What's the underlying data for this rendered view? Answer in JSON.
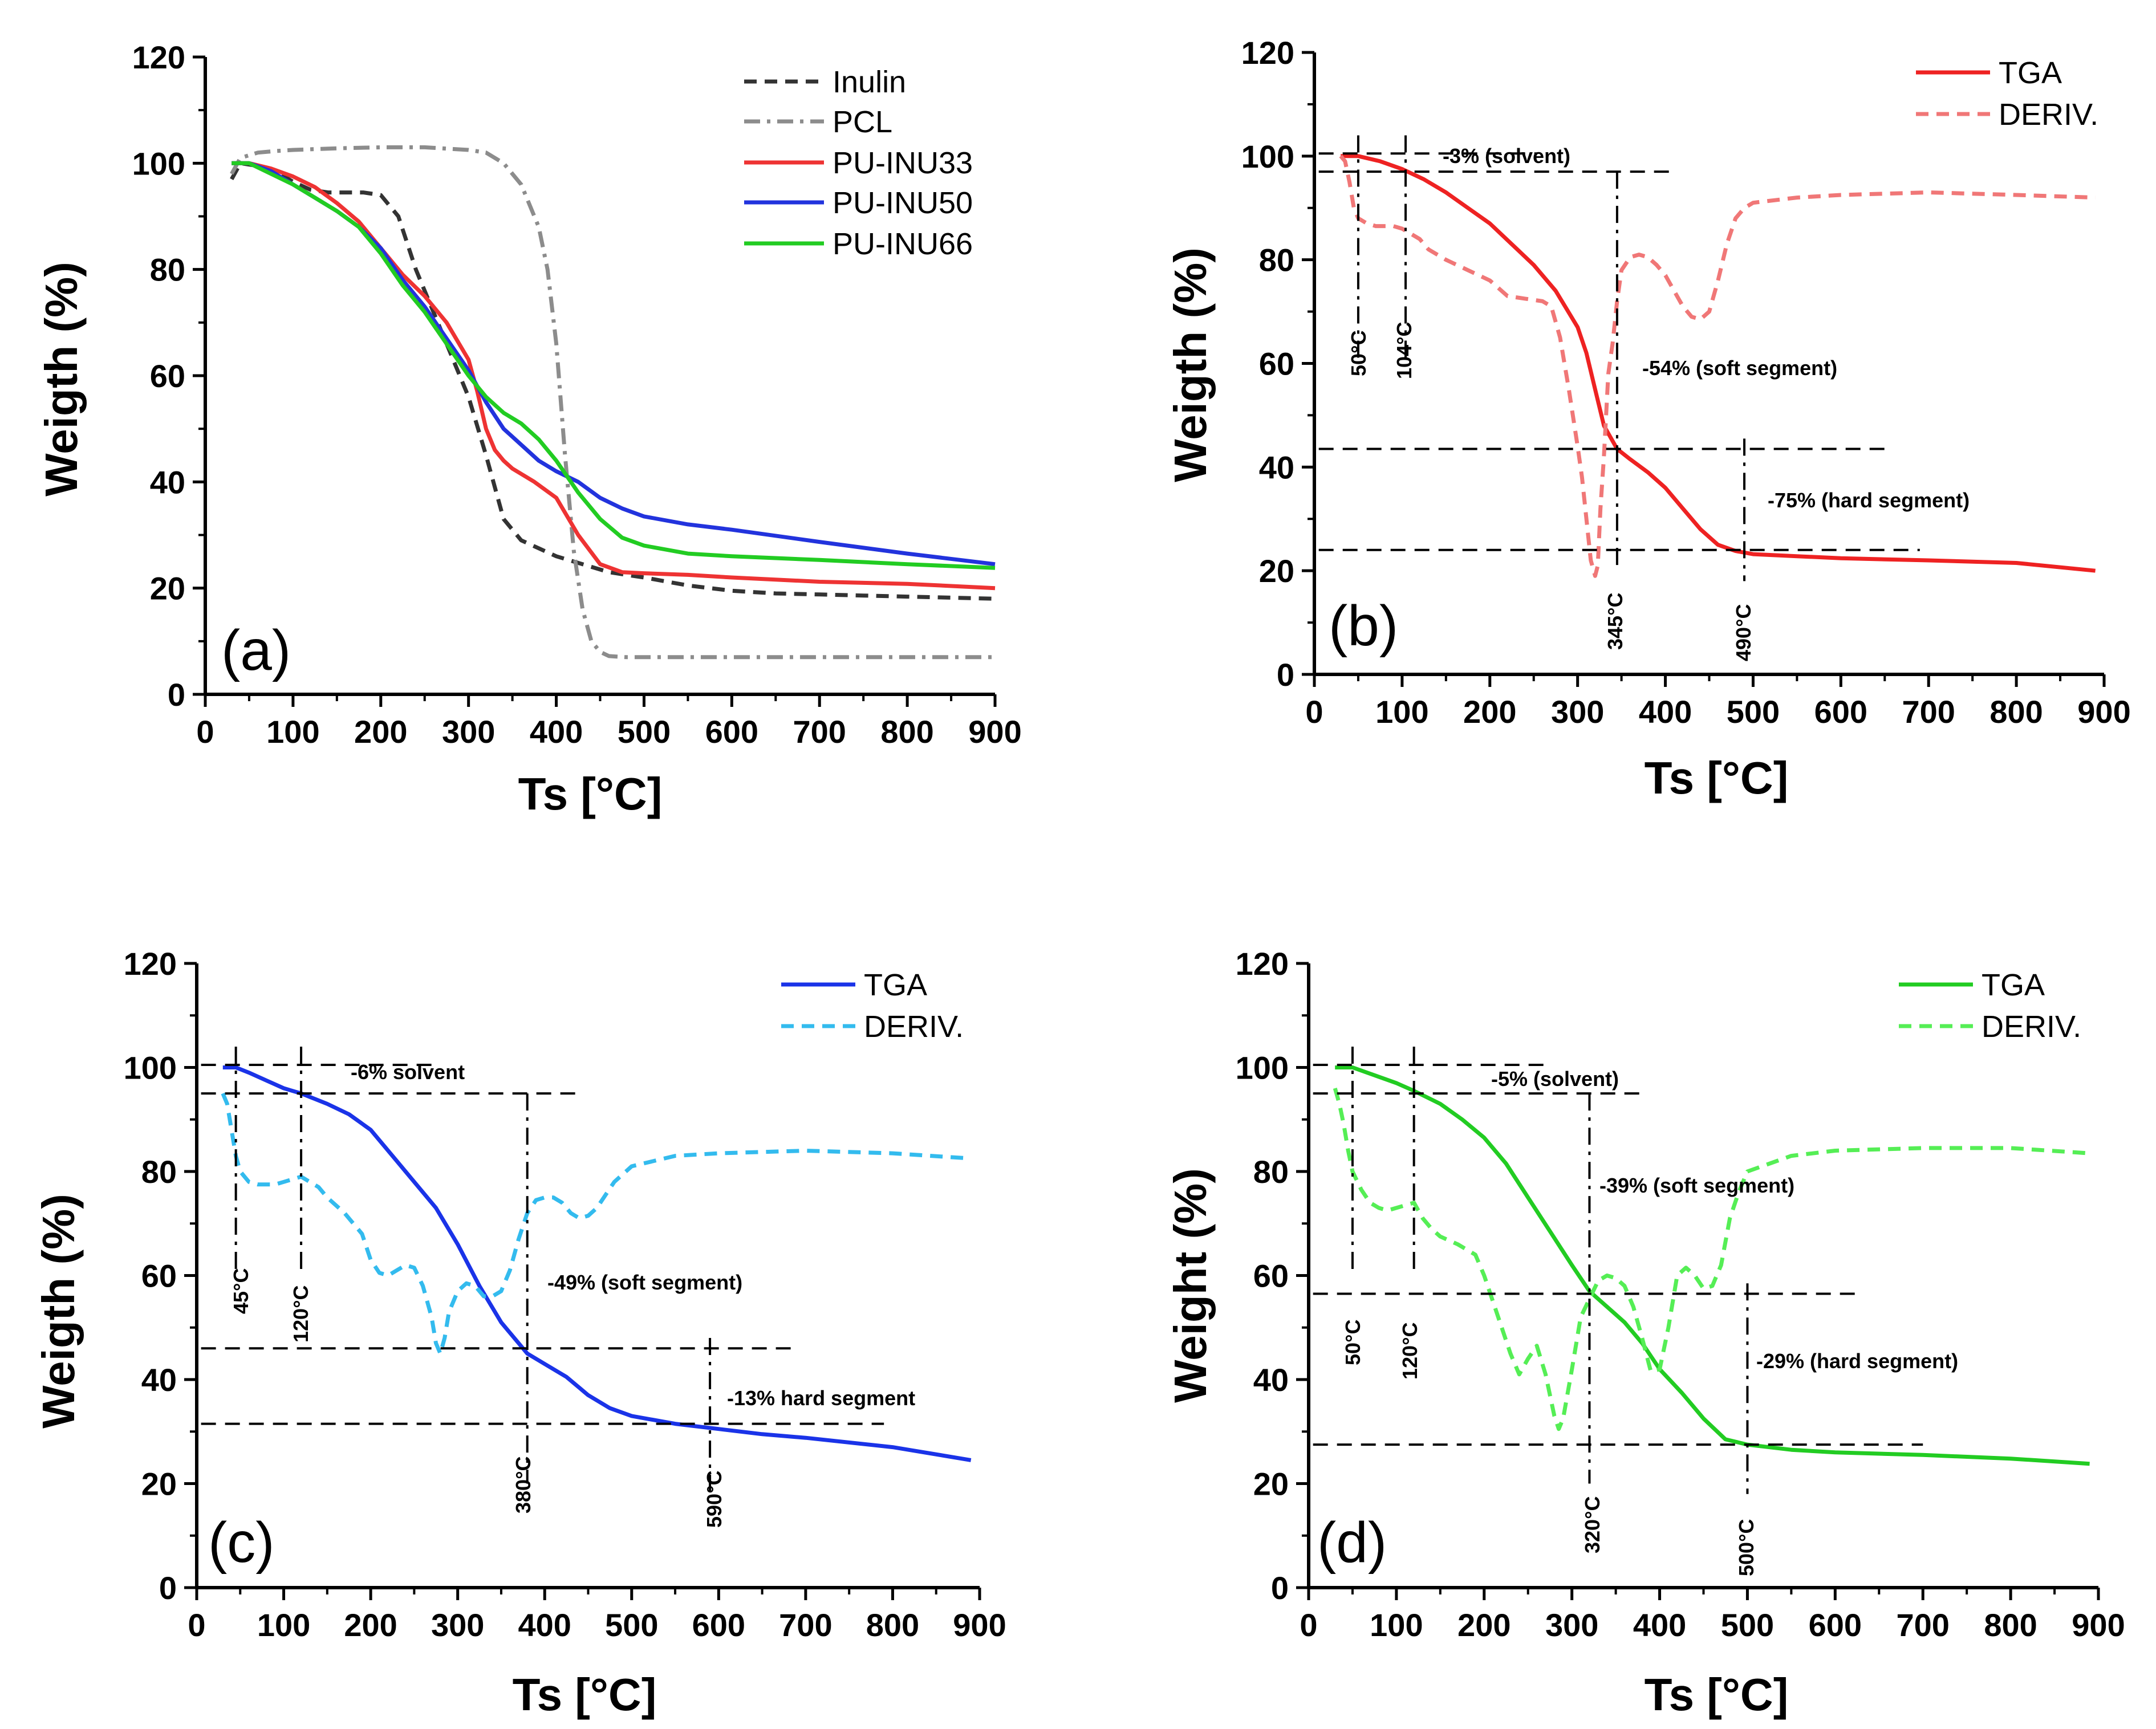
{
  "chart_data": [
    {
      "id": "a",
      "type": "line",
      "panel_label": "(a)",
      "xlabel": "Ts [°C]",
      "ylabel": "Weigth (%)",
      "xlim": [
        0,
        900
      ],
      "ylim": [
        0,
        120
      ],
      "xticks": [
        "0",
        "100",
        "200",
        "300",
        "400",
        "500",
        "600",
        "700",
        "800",
        "900"
      ],
      "yticks": [
        "0",
        "20",
        "40",
        "60",
        "80",
        "100",
        "120"
      ],
      "legend_position": "top-right",
      "series": [
        {
          "name": "Inulin",
          "color": "#333333",
          "style": "dash",
          "x": [
            30,
            40,
            60,
            80,
            100,
            120,
            140,
            160,
            180,
            200,
            220,
            240,
            260,
            280,
            300,
            320,
            340,
            360,
            380,
            400,
            420,
            440,
            460,
            480,
            500,
            550,
            600,
            650,
            700,
            750,
            800,
            850,
            900
          ],
          "y": [
            97,
            100,
            99.5,
            98.5,
            96.5,
            95,
            94.5,
            94.5,
            94.5,
            94,
            90,
            80,
            72,
            64,
            56,
            45,
            33,
            29,
            27.5,
            26,
            25,
            24,
            23,
            22.5,
            22,
            20.5,
            19.5,
            19,
            18.8,
            18.6,
            18.4,
            18.2,
            18
          ]
        },
        {
          "name": "PCL",
          "color": "#8c8c8c",
          "style": "dashdot",
          "x": [
            30,
            40,
            60,
            80,
            100,
            150,
            200,
            250,
            300,
            320,
            340,
            360,
            380,
            390,
            400,
            410,
            420,
            430,
            440,
            450,
            460,
            480,
            500,
            600,
            700,
            800,
            900
          ],
          "y": [
            98,
            101,
            102,
            102.3,
            102.5,
            102.8,
            103,
            103,
            102.5,
            102,
            100,
            96,
            88,
            80,
            66,
            45,
            27,
            16,
            10,
            8,
            7.2,
            7,
            7,
            7,
            7,
            7,
            7
          ]
        },
        {
          "name": "PU-INU33",
          "color": "#ee3333",
          "style": "solid",
          "x": [
            30,
            50,
            75,
            100,
            125,
            150,
            175,
            200,
            225,
            250,
            275,
            300,
            310,
            320,
            330,
            340,
            350,
            375,
            400,
            425,
            450,
            475,
            500,
            550,
            600,
            700,
            800,
            900
          ],
          "y": [
            100,
            100,
            99,
            97.5,
            95.5,
            92.5,
            89,
            84,
            79,
            75,
            70,
            63,
            57,
            50,
            46,
            44,
            42.5,
            40,
            37,
            30,
            24.5,
            23,
            22.8,
            22.5,
            22,
            21.2,
            20.8,
            20
          ]
        },
        {
          "name": "PU-INU50",
          "color": "#2233dd",
          "style": "solid",
          "x": [
            30,
            50,
            75,
            100,
            125,
            150,
            175,
            200,
            225,
            250,
            275,
            300,
            320,
            340,
            360,
            380,
            400,
            425,
            450,
            475,
            500,
            550,
            600,
            700,
            800,
            900
          ],
          "y": [
            100,
            100,
            98.5,
            96,
            93.5,
            91,
            88,
            84,
            78,
            73,
            67,
            61,
            55,
            50,
            47,
            44,
            42,
            40,
            37,
            35,
            33.5,
            32,
            31,
            28.7,
            26.5,
            24.5
          ]
        },
        {
          "name": "PU-INU66",
          "color": "#22cc22",
          "style": "solid",
          "x": [
            30,
            50,
            75,
            100,
            125,
            150,
            175,
            200,
            225,
            250,
            275,
            300,
            320,
            340,
            360,
            380,
            400,
            425,
            450,
            475,
            500,
            550,
            600,
            700,
            800,
            900
          ],
          "y": [
            100,
            100,
            98,
            96,
            93.5,
            91,
            88,
            83,
            77,
            72,
            66,
            60,
            56,
            53,
            51,
            48,
            44,
            38,
            33,
            29.5,
            28,
            26.5,
            26,
            25.3,
            24.5,
            23.8
          ]
        }
      ]
    },
    {
      "id": "b",
      "type": "line",
      "panel_label": "(b)",
      "xlabel": "Ts [°C]",
      "ylabel": "Weigth (%)",
      "xlim": [
        0,
        900
      ],
      "ylim": [
        0,
        120
      ],
      "xticks": [
        "0",
        "100",
        "200",
        "300",
        "400",
        "500",
        "600",
        "700",
        "800",
        "900"
      ],
      "yticks": [
        "0",
        "20",
        "40",
        "60",
        "80",
        "100",
        "120"
      ],
      "legend_position": "top-right",
      "series": [
        {
          "name": "TGA",
          "color": "#ee2222",
          "style": "solid",
          "x": [
            30,
            50,
            75,
            100,
            125,
            150,
            175,
            200,
            225,
            250,
            275,
            300,
            310,
            320,
            330,
            340,
            345,
            360,
            380,
            400,
            420,
            440,
            460,
            480,
            490,
            500,
            550,
            600,
            700,
            800,
            890
          ],
          "y": [
            100,
            100,
            99,
            97.5,
            95.5,
            93,
            90,
            87,
            83,
            79,
            74,
            67,
            62,
            55,
            48,
            45,
            43.5,
            41.5,
            39,
            36,
            32,
            28,
            25,
            23.8,
            23.5,
            23.2,
            22.8,
            22.4,
            22,
            21.5,
            20
          ]
        },
        {
          "name": "DERIV.",
          "color": "#f07777",
          "style": "dash",
          "x": [
            30,
            35,
            40,
            45,
            50,
            60,
            70,
            80,
            90,
            100,
            110,
            120,
            130,
            150,
            175,
            200,
            220,
            240,
            260,
            270,
            280,
            290,
            300,
            305,
            310,
            315,
            320,
            323,
            326,
            330,
            335,
            340,
            345,
            350,
            360,
            370,
            380,
            390,
            400,
            410,
            420,
            430,
            440,
            450,
            460,
            470,
            480,
            490,
            500,
            550,
            600,
            700,
            800,
            890
          ],
          "y": [
            100,
            99,
            95,
            90,
            88,
            87,
            86.5,
            86.5,
            86.5,
            86,
            85,
            84,
            82,
            80,
            78,
            76,
            73,
            72.5,
            72,
            71,
            65,
            55,
            44,
            38,
            30,
            22,
            19,
            21,
            32,
            42,
            58,
            64,
            72,
            78,
            80.5,
            81,
            80.5,
            79,
            77,
            74,
            71,
            69,
            68.5,
            70,
            76,
            83,
            88,
            90,
            91,
            92,
            92.5,
            93,
            92.5,
            92
          ]
        }
      ]
    },
    {
      "id": "c",
      "type": "line",
      "panel_label": "(c)",
      "xlabel": "Ts [°C]",
      "ylabel": "Weigth (%)",
      "xlim": [
        0,
        900
      ],
      "ylim": [
        0,
        120
      ],
      "xticks": [
        "0",
        "100",
        "200",
        "300",
        "400",
        "500",
        "600",
        "700",
        "800",
        "900"
      ],
      "yticks": [
        "0",
        "20",
        "40",
        "60",
        "80",
        "100",
        "120"
      ],
      "legend_position": "top-right",
      "series": [
        {
          "name": "TGA",
          "color": "#1a33e8",
          "style": "solid",
          "x": [
            30,
            45,
            60,
            80,
            100,
            120,
            150,
            175,
            200,
            225,
            250,
            275,
            300,
            325,
            350,
            375,
            380,
            400,
            425,
            450,
            475,
            500,
            550,
            600,
            650,
            700,
            800,
            890
          ],
          "y": [
            100,
            100,
            99,
            97.5,
            96,
            95,
            93,
            91,
            88,
            83,
            78,
            73,
            66,
            58,
            51,
            46,
            45,
            43,
            40.5,
            37,
            34.5,
            33,
            31.5,
            30.5,
            29.5,
            28.8,
            27,
            24.5
          ]
        },
        {
          "name": "DERIV.",
          "color": "#33bbee",
          "style": "dash",
          "x": [
            30,
            35,
            40,
            45,
            50,
            60,
            70,
            80,
            90,
            100,
            110,
            120,
            130,
            140,
            150,
            170,
            190,
            200,
            210,
            220,
            230,
            240,
            250,
            260,
            270,
            275,
            280,
            285,
            290,
            300,
            310,
            320,
            330,
            340,
            350,
            360,
            370,
            380,
            390,
            400,
            410,
            420,
            430,
            440,
            450,
            460,
            470,
            480,
            500,
            550,
            600,
            700,
            800,
            890
          ],
          "y": [
            95,
            93,
            88,
            83,
            80,
            78,
            77.5,
            77.5,
            77.5,
            78,
            78.5,
            79,
            78,
            77,
            75,
            72,
            68,
            63,
            60.5,
            60,
            61,
            62,
            61.5,
            58,
            52,
            47,
            45,
            48,
            53,
            57,
            58.5,
            58,
            56,
            56,
            57,
            61,
            67,
            72,
            74.5,
            75,
            75,
            74,
            72,
            71,
            71.5,
            73,
            75.5,
            78,
            81,
            83,
            83.5,
            84,
            83.5,
            82.5
          ]
        }
      ]
    },
    {
      "id": "d",
      "type": "line",
      "panel_label": "(d)",
      "xlabel": "Ts [°C]",
      "ylabel": "Weight (%)",
      "xlim": [
        0,
        900
      ],
      "ylim": [
        0,
        120
      ],
      "xticks": [
        "0",
        "100",
        "200",
        "300",
        "400",
        "500",
        "600",
        "700",
        "800",
        "900"
      ],
      "yticks": [
        "0",
        "20",
        "40",
        "60",
        "80",
        "100",
        "120"
      ],
      "legend_position": "top-right",
      "series": [
        {
          "name": "TGA",
          "color": "#22cc22",
          "style": "solid",
          "x": [
            30,
            50,
            75,
            100,
            120,
            150,
            175,
            200,
            225,
            250,
            275,
            300,
            320,
            340,
            360,
            380,
            400,
            425,
            450,
            475,
            500,
            550,
            600,
            700,
            800,
            890
          ],
          "y": [
            100,
            100,
            98.5,
            97,
            95.5,
            93,
            90,
            86.5,
            81.5,
            75,
            68.5,
            62,
            57,
            54,
            51,
            47,
            42,
            37.5,
            32.5,
            28.5,
            27.5,
            26.5,
            26,
            25.5,
            24.8,
            23.8
          ]
        },
        {
          "name": "DERIV.",
          "color": "#55ee55",
          "style": "dash",
          "x": [
            30,
            35,
            40,
            45,
            50,
            60,
            70,
            80,
            90,
            100,
            110,
            120,
            130,
            140,
            150,
            170,
            190,
            200,
            210,
            220,
            230,
            240,
            250,
            260,
            270,
            280,
            285,
            290,
            300,
            310,
            320,
            330,
            340,
            350,
            360,
            370,
            380,
            390,
            400,
            410,
            420,
            430,
            440,
            450,
            460,
            470,
            480,
            490,
            500,
            550,
            600,
            700,
            800,
            890
          ],
          "y": [
            96,
            93,
            89,
            84,
            80,
            76.5,
            74,
            73,
            72.5,
            73,
            73.5,
            74,
            71,
            69,
            67.5,
            66,
            64,
            60,
            55,
            50,
            45,
            41,
            44,
            46.5,
            41,
            33,
            30.5,
            32.5,
            42,
            52,
            55.5,
            59,
            60,
            59.5,
            58,
            54,
            48,
            41.5,
            42,
            50,
            60,
            61.5,
            60,
            57.5,
            58,
            62,
            71,
            76,
            80,
            83,
            84,
            84.5,
            84.5,
            83.5
          ]
        }
      ]
    }
  ],
  "legends": {
    "a": [
      "Inulin",
      "PCL",
      "PU-INU33",
      "PU-INU50",
      "PU-INU66"
    ],
    "b": [
      "TGA",
      "DERIV."
    ],
    "c": [
      "TGA",
      "DERIV."
    ],
    "d": [
      "TGA",
      "DERIV."
    ]
  },
  "annotations": {
    "b": {
      "solvent": "-3% (solvent)",
      "soft": "-54% (soft segment)",
      "hard": "-75% (hard segment)",
      "t1": "50°C",
      "t2": "104°C",
      "t3": "345°C",
      "t4": "490°C"
    },
    "c": {
      "solvent": "-6% solvent",
      "soft": "-49% (soft segment)",
      "hard": "-13% hard segment",
      "t1": "45°C",
      "t2": "120°C",
      "t3": "380°C",
      "t4": "590°C"
    },
    "d": {
      "solvent": "-5% (solvent)",
      "soft": "-39% (soft segment)",
      "hard": "-29% (hard segment)",
      "t1": "50°C",
      "t2": "120°C",
      "t3": "320°C",
      "t4": "500°C"
    }
  },
  "annotation_values": {
    "b": {
      "t1": 50,
      "t2": 104,
      "t3": 345,
      "t4": 490,
      "y_solvent": 97,
      "y_soft": 43.5,
      "y_hard": 24
    },
    "c": {
      "t1": 45,
      "t2": 120,
      "t3": 380,
      "t4": 590,
      "y_solvent": 95,
      "y_soft": 46,
      "y_hard": 31.5
    },
    "d": {
      "t1": 50,
      "t2": 120,
      "t3": 320,
      "t4": 500,
      "y_solvent": 95,
      "y_soft": 56.5,
      "y_hard": 27.5
    }
  }
}
